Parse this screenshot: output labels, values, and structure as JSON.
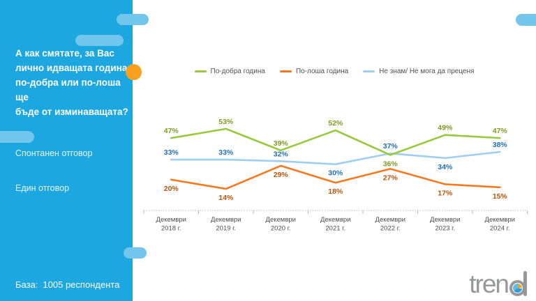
{
  "sidebar": {
    "title_lines": [
      "А как смятате, за Вас",
      "лично идващата година",
      "по-добра или по-лоша ще",
      "бъде от изминаващата?"
    ],
    "note_spontaneous": "Спонтанен отговор",
    "note_single": "Един отговор",
    "base_label": "База:",
    "base_value": "1005 респондента"
  },
  "chart_data": {
    "type": "line",
    "categories": [
      "Декември 2018 г.",
      "Декември 2019 г.",
      "Декември 2020 г.",
      "Декември 2021 г.",
      "Декември 2022 г.",
      "Декември 2023 г.",
      "Декември 2024 г."
    ],
    "series": [
      {
        "name": "По-добра година",
        "color": "#97C93D",
        "label_color": "#7E9B1F",
        "values": [
          47,
          53,
          39,
          52,
          36,
          49,
          47
        ],
        "label_pos": [
          "above",
          "above",
          "above",
          "above",
          "below",
          "above",
          "above"
        ]
      },
      {
        "name": "По-лоша година",
        "color": "#F5791F",
        "label_color": "#BB5408",
        "values": [
          20,
          14,
          29,
          18,
          27,
          17,
          15
        ],
        "label_pos": [
          "below",
          "below",
          "below",
          "below",
          "below",
          "below",
          "below"
        ]
      },
      {
        "name": "Не знам/ Не мога да преценя",
        "color": "#9FCEF0",
        "label_color": "#2171B5",
        "values": [
          33,
          33,
          32,
          30,
          37,
          34,
          38
        ],
        "label_pos": [
          "above",
          "above",
          "above",
          "below",
          "above",
          "below",
          "above"
        ]
      }
    ],
    "value_suffix": "%",
    "ylim": [
      0,
      60
    ],
    "grid": false,
    "legend_position": "top",
    "title": ""
  },
  "logo": {
    "text": "trend"
  },
  "colors": {
    "sidebar_bg": "#1CA7E1",
    "decor_pill": "#72C5EB",
    "accent_dot": "#F9A11F",
    "axis_line": "#BDBDBD",
    "axis_text": "#4D4D4D",
    "legend_text": "#4F4F4F",
    "logo_gray": "#97989A"
  }
}
